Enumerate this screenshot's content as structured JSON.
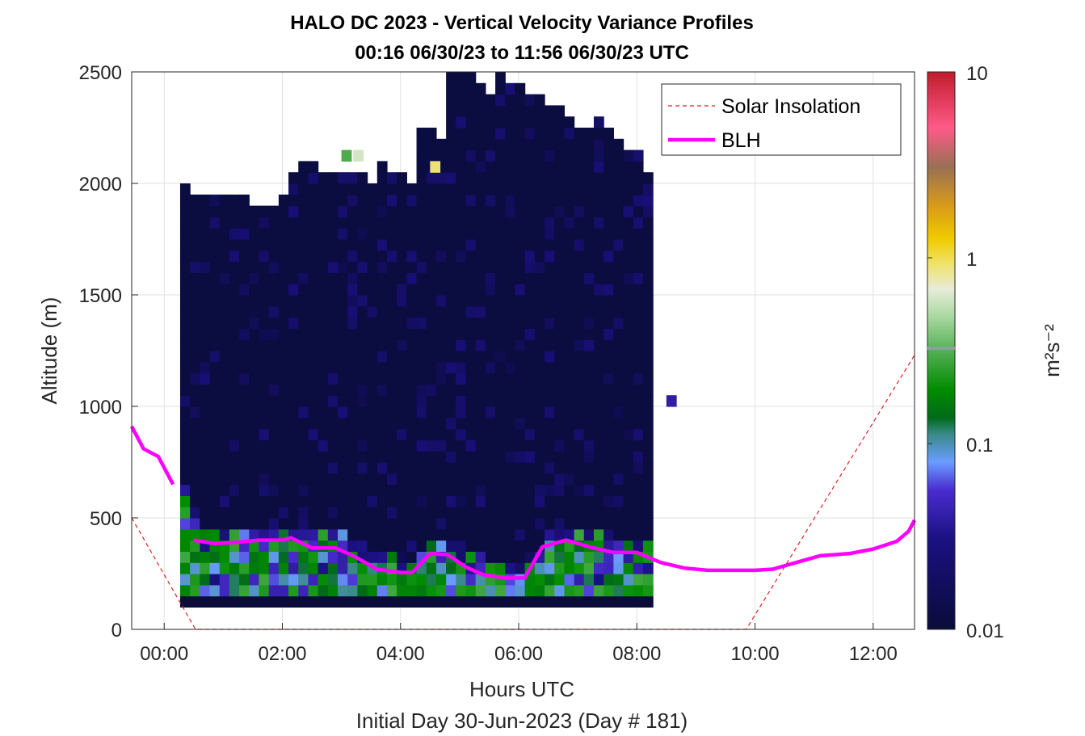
{
  "chart_data": {
    "type": "heatmap",
    "title": "HALO DC 2023 - Vertical Velocity Variance Profiles",
    "subtitle": "00:16 06/30/23 to 11:56 06/30/23  UTC",
    "xlabel": "Hours UTC",
    "xlabel2": "Initial Day 30-Jun-2023 (Day # 181)",
    "ylabel": "Altitude (m)",
    "colorbar_label": "m²s⁻²",
    "colorbar_scale": "log",
    "colorbar_range": [
      0.01,
      10
    ],
    "colorbar_ticks": [
      {
        "value": 0.01,
        "label": "0.01"
      },
      {
        "value": 0.1,
        "label": "0.1"
      },
      {
        "value": 1,
        "label": "1"
      },
      {
        "value": 10,
        "label": "10"
      }
    ],
    "xlim": [
      -0.55,
      12.7
    ],
    "ylim": [
      0,
      2500
    ],
    "x_ticks": [
      {
        "value": 0,
        "label": "00:00"
      },
      {
        "value": 2,
        "label": "02:00"
      },
      {
        "value": 4,
        "label": "04:00"
      },
      {
        "value": 6,
        "label": "06:00"
      },
      {
        "value": 8,
        "label": "08:00"
      },
      {
        "value": 10,
        "label": "10:00"
      },
      {
        "value": 12,
        "label": "12:00"
      }
    ],
    "y_ticks": [
      0,
      500,
      1000,
      1500,
      2000,
      2500
    ],
    "grid": true,
    "legend": {
      "placement": "top-right",
      "entries": [
        {
          "label": "Solar Insolation",
          "color": "#dd2222",
          "style": "dashed"
        },
        {
          "label": "BLH",
          "color": "#ff00ff",
          "style": "solid"
        }
      ]
    },
    "heatmap": {
      "time_start": 0.27,
      "time_step": 0.1667,
      "altitude_start": 100,
      "altitude_step": 50,
      "columns": 48,
      "top_altitude_per_column": [
        2000,
        1950,
        1950,
        1950,
        1950,
        1950,
        1950,
        1900,
        1900,
        1900,
        1950,
        2050,
        2100,
        2100,
        2050,
        2050,
        2050,
        2050,
        2050,
        2000,
        2100,
        2050,
        2050,
        2000,
        2250,
        2250,
        2200,
        2500,
        2500,
        2500,
        2450,
        2400,
        2500,
        2450,
        2450,
        2400,
        2400,
        2350,
        2350,
        2300,
        2250,
        2250,
        2300,
        2250,
        2200,
        2150,
        2150,
        2050
      ],
      "background_value": 0.011,
      "notable_cells": [
        {
          "t": 3.0,
          "alt": 2100,
          "value": 0.3
        },
        {
          "t": 3.2,
          "alt": 2100,
          "value": 0.6
        },
        {
          "t": 4.5,
          "alt": 2050,
          "value": 0.9
        },
        {
          "t": 8.5,
          "alt": 1000,
          "value": 0.04
        }
      ]
    },
    "series": [
      {
        "name": "BLH",
        "x": [
          -0.55,
          -0.35,
          -0.1,
          0.15,
          0.5,
          0.85,
          1.2,
          1.6,
          2.0,
          2.15,
          2.5,
          2.9,
          3.2,
          3.6,
          4.0,
          4.2,
          4.5,
          4.8,
          5.1,
          5.4,
          5.8,
          6.1,
          6.4,
          6.8,
          7.2,
          7.6,
          8.0,
          8.4,
          8.8,
          9.2,
          9.6,
          10.0,
          10.3,
          10.7,
          11.1,
          11.6,
          12.0,
          12.4,
          12.6,
          12.7
        ],
        "y": [
          910,
          810,
          775,
          650,
          400,
          385,
          390,
          400,
          400,
          410,
          365,
          365,
          330,
          270,
          255,
          255,
          340,
          335,
          280,
          245,
          230,
          230,
          370,
          400,
          370,
          345,
          345,
          300,
          275,
          265,
          265,
          265,
          270,
          300,
          330,
          340,
          360,
          395,
          440,
          490
        ]
      },
      {
        "name": "Solar Insolation",
        "x": [
          -0.55,
          0.53,
          9.85,
          12.7
        ],
        "y": [
          500,
          0,
          0,
          1230
        ]
      }
    ]
  }
}
